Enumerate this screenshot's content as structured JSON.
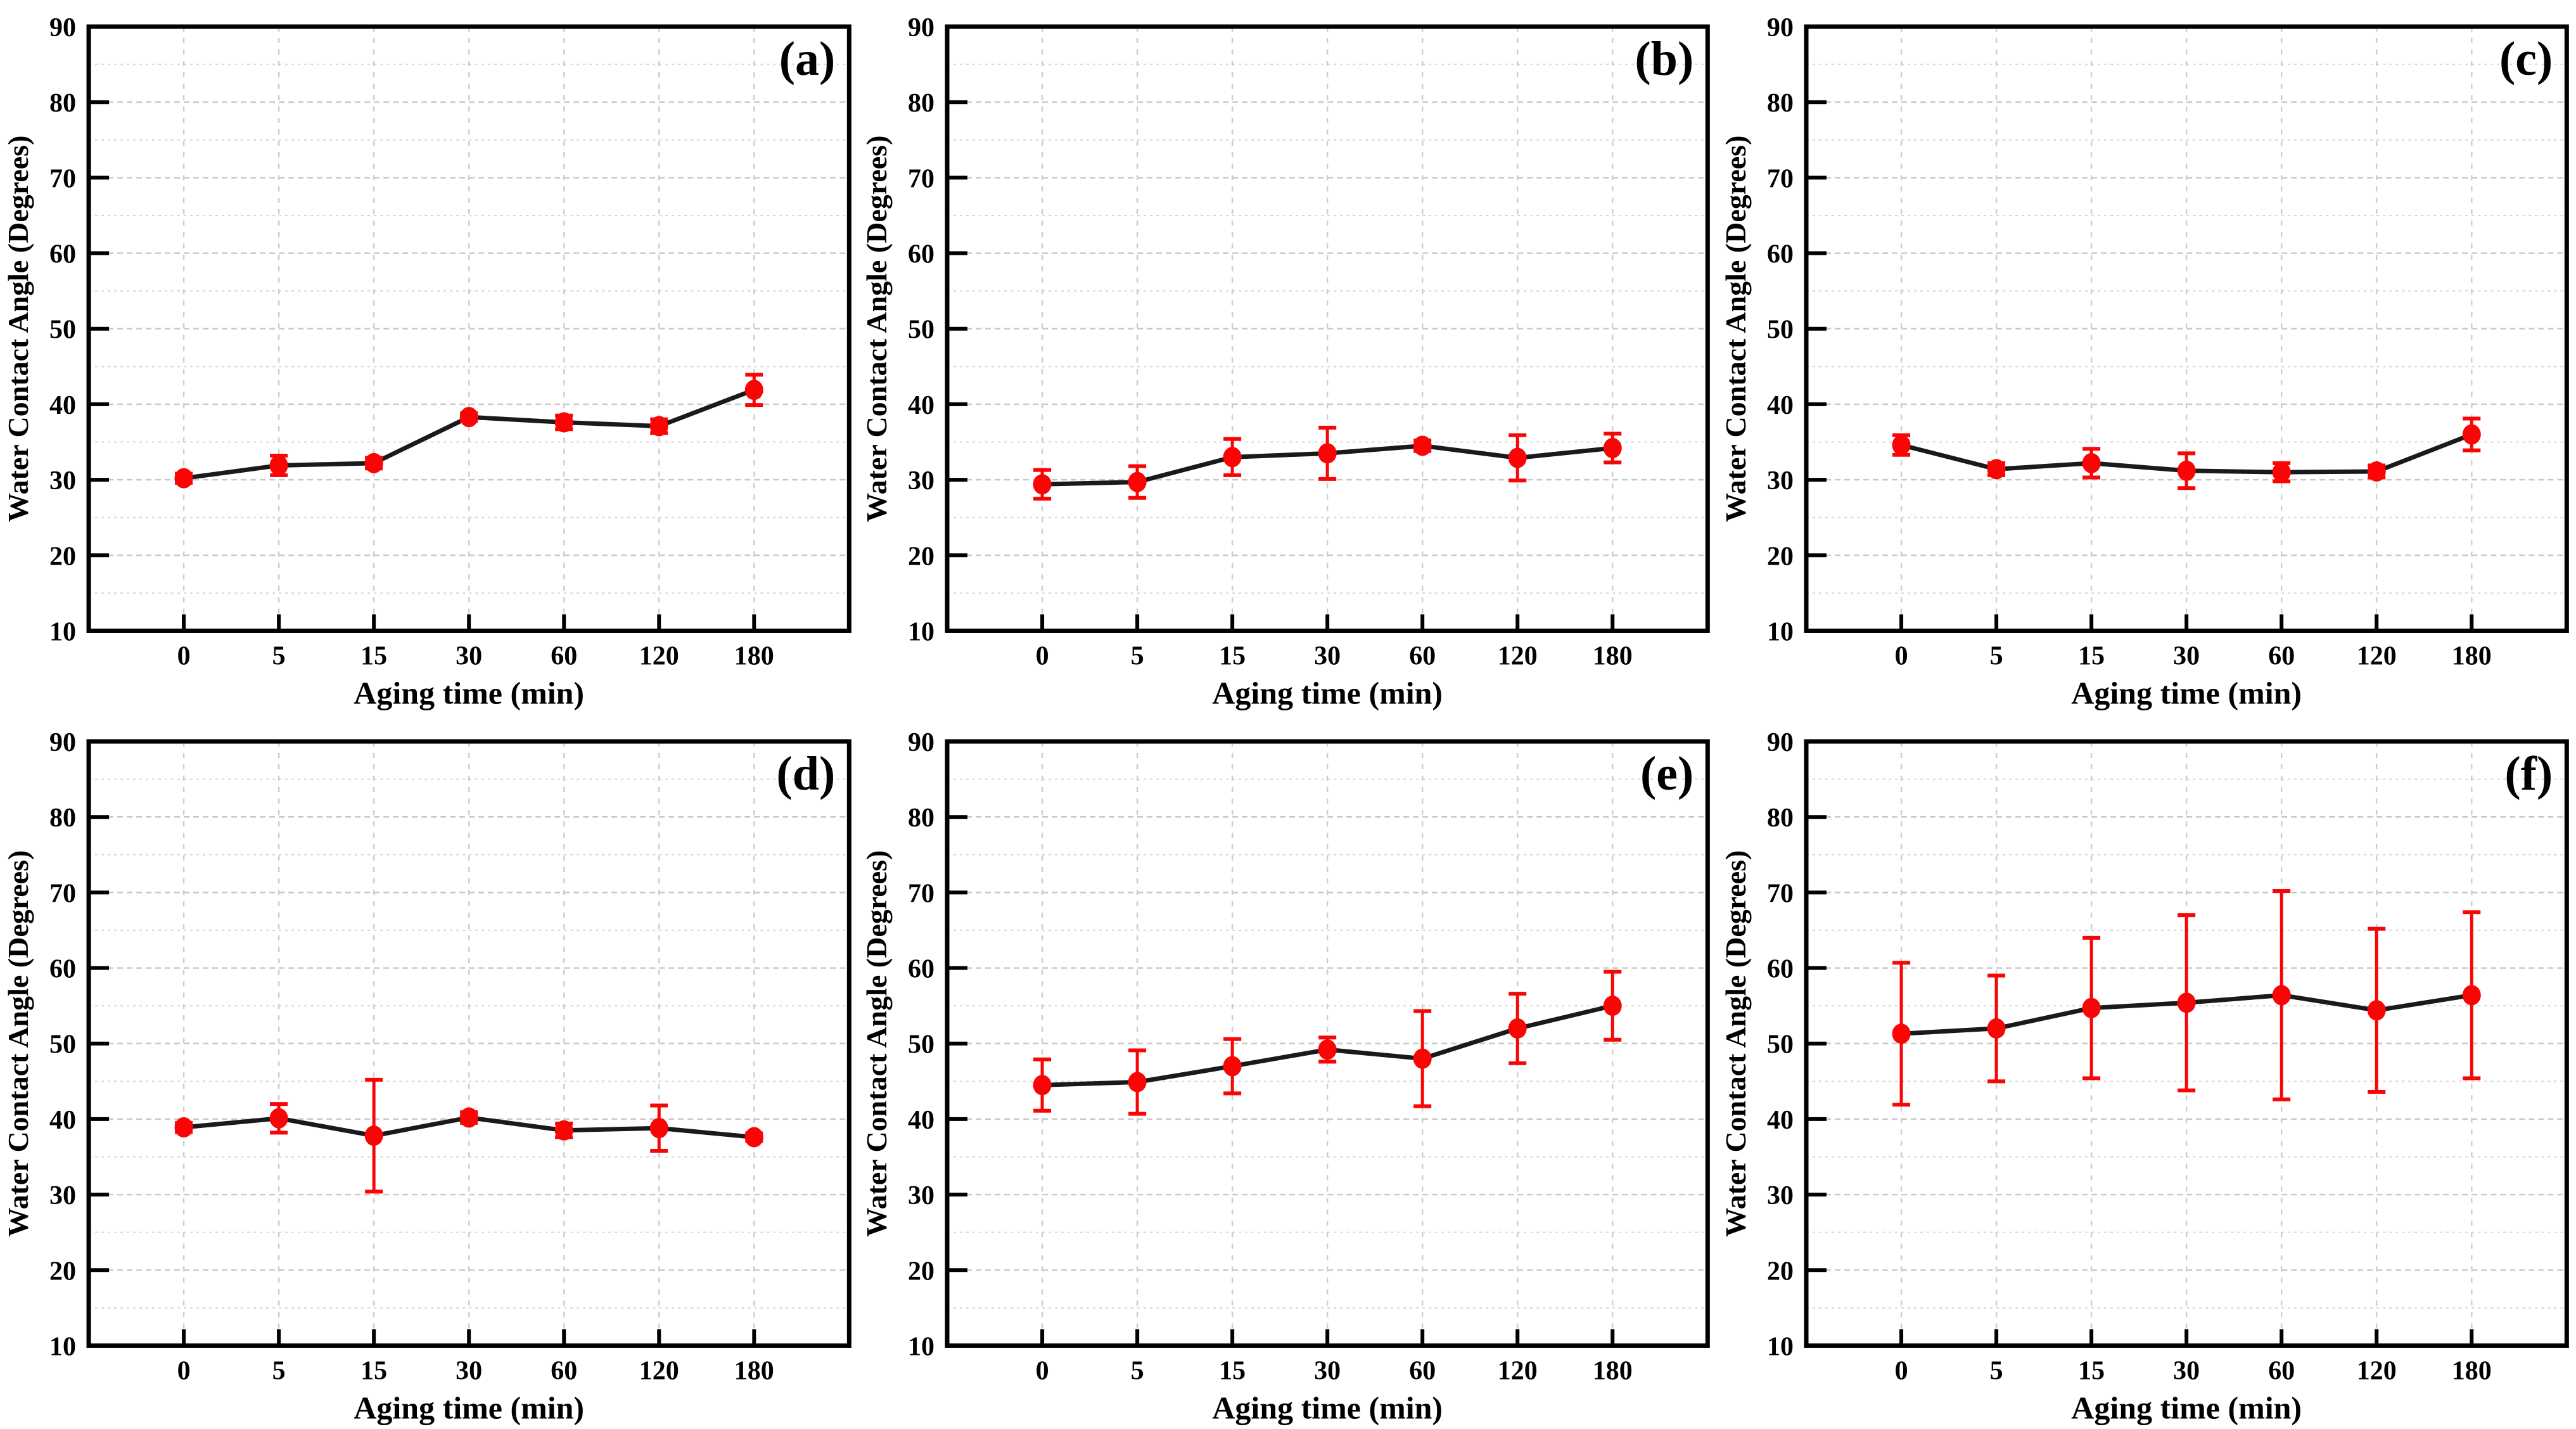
{
  "figure": {
    "xlabel": "Aging time (min)",
    "ylabel": "Water Contact Angle (Degrees)",
    "categories": [
      "0",
      "5",
      "15",
      "30",
      "60",
      "120",
      "180"
    ],
    "yticks": [
      10,
      20,
      30,
      40,
      50,
      60,
      70,
      80,
      90
    ],
    "ylim": [
      10,
      90
    ],
    "grid": "on",
    "legend": "none"
  },
  "colors": {
    "marker": "#fa0505",
    "errorbar": "#fa0505",
    "line": "#1a1a1a",
    "axis": "#000000",
    "grid_major": "#c7c7c7",
    "grid_minor": "#d6d6d6",
    "grid_vertical": "#cdcdcd",
    "background": "#ffffff"
  },
  "chart_data": [
    {
      "type": "line",
      "panel_label": "(a)",
      "xlabel": "Aging time (min)",
      "ylabel": "Water Contact Angle (Degrees)",
      "categories": [
        "0",
        "5",
        "15",
        "30",
        "60",
        "120",
        "180"
      ],
      "ylim": [
        10,
        90
      ],
      "series": [
        {
          "name": "water-contact-angle",
          "values": [
            30.2,
            31.9,
            32.2,
            38.3,
            37.6,
            37.1,
            41.9
          ],
          "errors": [
            0.6,
            1.3,
            0.7,
            0.5,
            0.9,
            0.9,
            2.0
          ]
        }
      ]
    },
    {
      "type": "line",
      "panel_label": "(b)",
      "xlabel": "Aging time (min)",
      "ylabel": "Water Contact Angle (Degrees)",
      "categories": [
        "0",
        "5",
        "15",
        "30",
        "60",
        "120",
        "180"
      ],
      "ylim": [
        10,
        90
      ],
      "series": [
        {
          "name": "water-contact-angle",
          "values": [
            29.4,
            29.7,
            33.0,
            33.5,
            34.5,
            32.9,
            34.2
          ],
          "errors": [
            1.9,
            2.1,
            2.4,
            3.4,
            0.7,
            3.0,
            1.9
          ]
        }
      ]
    },
    {
      "type": "line",
      "panel_label": "(c)",
      "xlabel": "Aging time (min)",
      "ylabel": "Water Contact Angle (Degrees)",
      "categories": [
        "0",
        "5",
        "15",
        "30",
        "60",
        "120",
        "180"
      ],
      "ylim": [
        10,
        90
      ],
      "series": [
        {
          "name": "water-contact-angle",
          "values": [
            34.6,
            31.4,
            32.2,
            31.2,
            31.0,
            31.1,
            36.0
          ],
          "errors": [
            1.3,
            0.8,
            1.9,
            2.3,
            1.2,
            0.8,
            2.1
          ]
        }
      ]
    },
    {
      "type": "line",
      "panel_label": "(d)",
      "xlabel": "Aging time (min)",
      "ylabel": "Water Contact Angle (Degrees)",
      "categories": [
        "0",
        "5",
        "15",
        "30",
        "60",
        "120",
        "180"
      ],
      "ylim": [
        10,
        90
      ],
      "series": [
        {
          "name": "water-contact-angle",
          "values": [
            38.9,
            40.1,
            37.8,
            40.2,
            38.5,
            38.8,
            37.6
          ],
          "errors": [
            0.6,
            1.9,
            7.4,
            0.7,
            0.9,
            3.0,
            0.5
          ]
        }
      ]
    },
    {
      "type": "line",
      "panel_label": "(e)",
      "xlabel": "Aging time (min)",
      "ylabel": "Water Contact Angle (Degrees)",
      "categories": [
        "0",
        "5",
        "15",
        "30",
        "60",
        "120",
        "180"
      ],
      "ylim": [
        10,
        90
      ],
      "series": [
        {
          "name": "water-contact-angle",
          "values": [
            44.5,
            44.9,
            47.0,
            49.2,
            48.0,
            52.0,
            55.0
          ],
          "errors": [
            3.4,
            4.2,
            3.6,
            1.6,
            6.3,
            4.6,
            4.5
          ]
        }
      ]
    },
    {
      "type": "line",
      "panel_label": "(f)",
      "xlabel": "Aging time (min)",
      "ylabel": "Water Contact Angle (Degrees)",
      "categories": [
        "0",
        "5",
        "15",
        "30",
        "60",
        "120",
        "180"
      ],
      "ylim": [
        10,
        90
      ],
      "series": [
        {
          "name": "water-contact-angle",
          "values": [
            51.3,
            52.0,
            54.7,
            55.4,
            56.4,
            54.4,
            56.4
          ],
          "errors": [
            9.4,
            7.0,
            9.3,
            11.6,
            13.8,
            10.8,
            11.0
          ]
        }
      ]
    }
  ]
}
